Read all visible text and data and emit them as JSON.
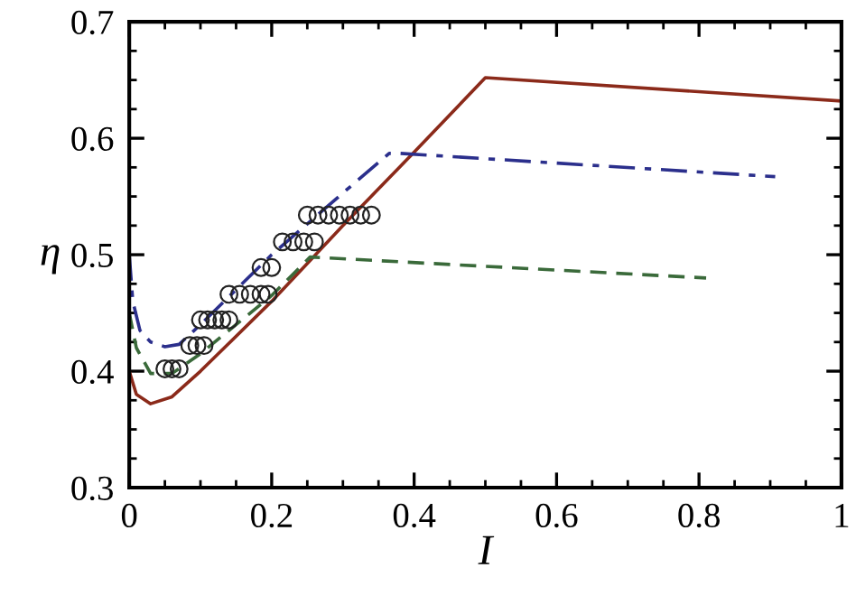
{
  "chart_data": {
    "type": "line",
    "xlabel": "I",
    "ylabel": "η",
    "xlim": [
      0,
      1
    ],
    "ylim": [
      0.3,
      0.7
    ],
    "xticks": [
      {
        "value": 0,
        "label": "0"
      },
      0.2,
      0.4,
      0.6,
      0.8,
      {
        "value": 1,
        "label": "1"
      }
    ],
    "yticks": [
      0.3,
      0.4,
      0.5,
      0.6,
      0.7
    ],
    "grid": false,
    "legend": false,
    "series": [
      {
        "color": "#8b2a1a",
        "line_style": "solid",
        "marker": "none",
        "x": [
          0,
          0.01,
          0.03,
          0.06,
          0.1,
          0.2,
          0.3,
          0.4,
          0.5,
          1
        ],
        "values": [
          0.4,
          0.38,
          0.372,
          0.378,
          0.4,
          0.46,
          0.525,
          0.588,
          0.652,
          0.632
        ]
      },
      {
        "color": "#2b2f8c",
        "line_style": "dashdot",
        "marker": "none",
        "x": [
          0,
          0.005,
          0.015,
          0.03,
          0.05,
          0.07,
          0.1,
          0.2,
          0.3,
          0.365,
          0.38,
          0.907
        ],
        "values": [
          0.5,
          0.46,
          0.435,
          0.425,
          0.421,
          0.423,
          0.44,
          0.5,
          0.553,
          0.587,
          0.587,
          0.567
        ]
      },
      {
        "color": "#3a6a3a",
        "line_style": "dashed",
        "marker": "none",
        "x": [
          0,
          0.01,
          0.03,
          0.06,
          0.1,
          0.2,
          0.254,
          0.81
        ],
        "values": [
          0.45,
          0.42,
          0.398,
          0.398,
          0.415,
          0.465,
          0.498,
          0.48
        ]
      },
      {
        "type": "scatter",
        "color": "#222222",
        "marker": "circle",
        "x": [
          0.05,
          0.06,
          0.07,
          0.085,
          0.095,
          0.105,
          0.1,
          0.11,
          0.12,
          0.13,
          0.14,
          0.14,
          0.155,
          0.17,
          0.185,
          0.195,
          0.185,
          0.2,
          0.215,
          0.23,
          0.245,
          0.26,
          0.25,
          0.265,
          0.28,
          0.295,
          0.31,
          0.325,
          0.34
        ],
        "values": [
          0.402,
          0.402,
          0.402,
          0.422,
          0.422,
          0.422,
          0.444,
          0.444,
          0.444,
          0.444,
          0.444,
          0.466,
          0.466,
          0.466,
          0.466,
          0.466,
          0.489,
          0.489,
          0.511,
          0.511,
          0.511,
          0.511,
          0.534,
          0.534,
          0.534,
          0.534,
          0.534,
          0.534,
          0.534
        ]
      }
    ]
  }
}
